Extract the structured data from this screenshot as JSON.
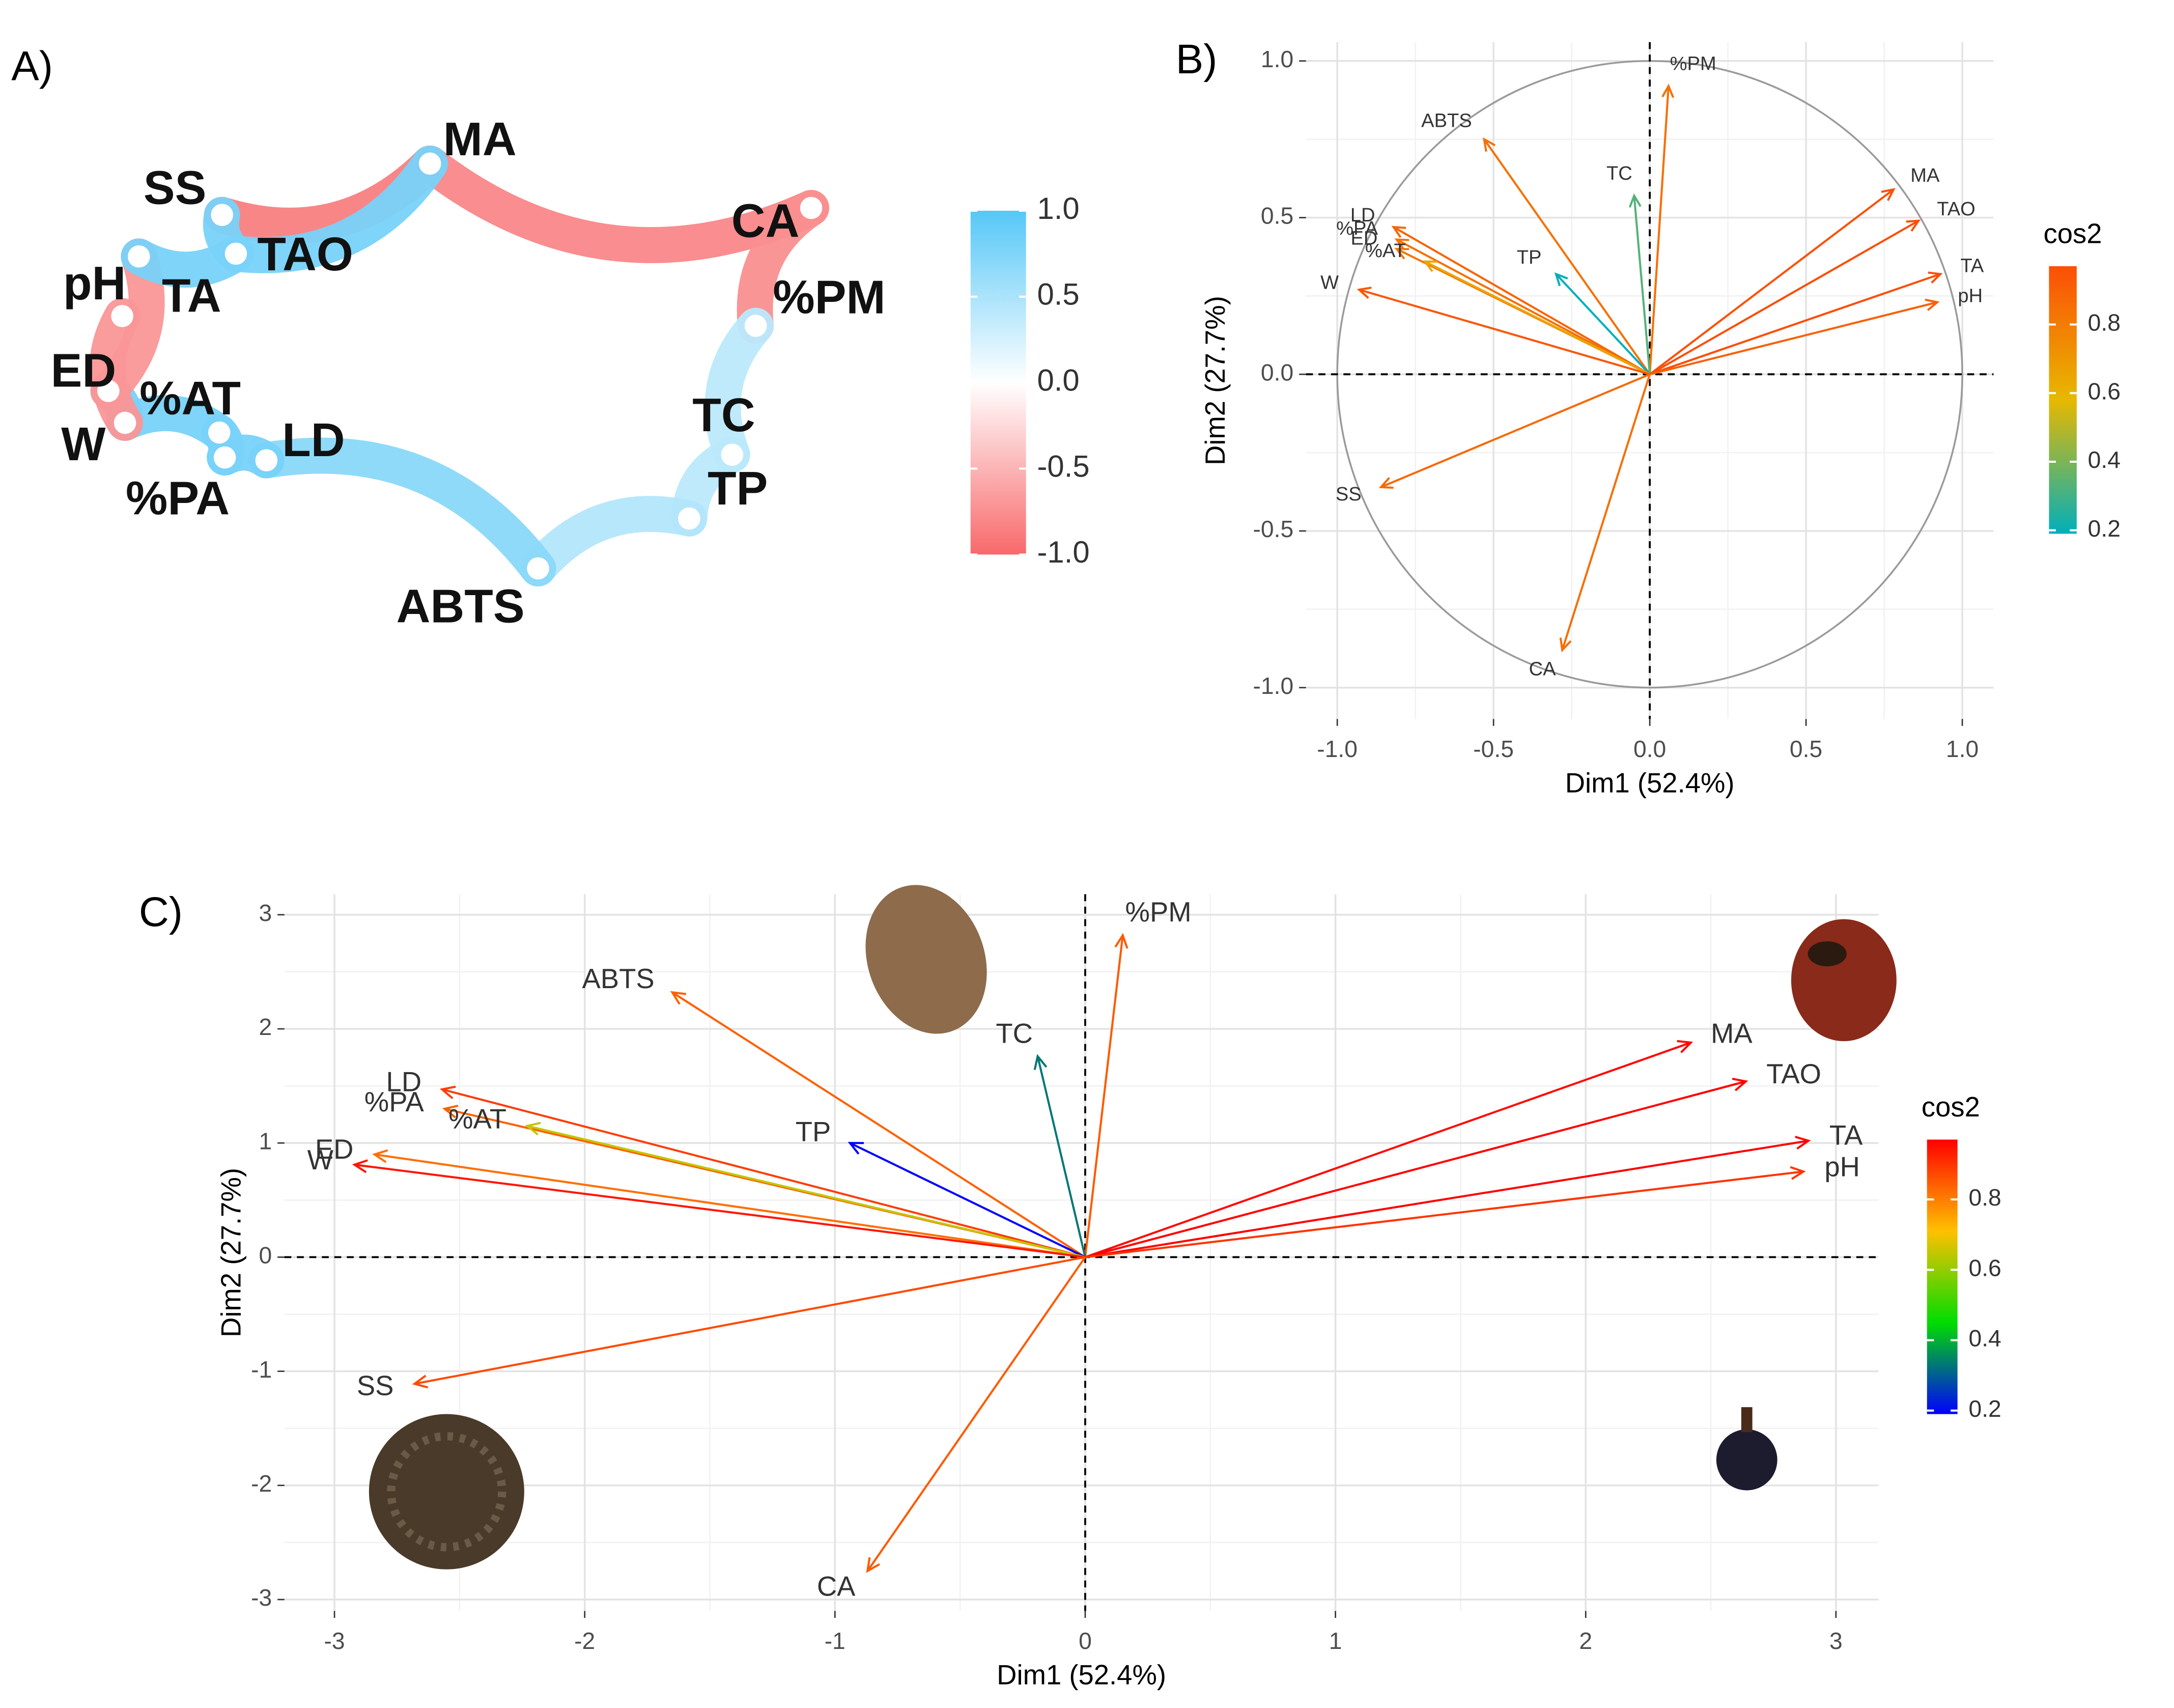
{
  "chart_data": [
    {
      "type": "network",
      "panel": "A)",
      "nodes": [
        "MA",
        "SS",
        "TAO",
        "pH",
        "TA",
        "CA",
        "%PM",
        "ED",
        "%AT",
        "W",
        "LD",
        "%PA",
        "TC",
        "TP",
        "ABTS"
      ],
      "edges": [
        {
          "from": "SS",
          "to": "MA",
          "value": -0.85
        },
        {
          "from": "MA",
          "to": "CA",
          "value": -0.8
        },
        {
          "from": "CA",
          "to": "%PM",
          "value": -0.75
        },
        {
          "from": "%PM",
          "to": "TC",
          "value": 0.4
        },
        {
          "from": "TC",
          "to": "TP",
          "value": 0.4
        },
        {
          "from": "TP",
          "to": "ABTS",
          "value": 0.45
        },
        {
          "from": "ABTS",
          "to": "LD",
          "value": 0.7
        },
        {
          "from": "LD",
          "to": "%PA",
          "value": 0.8
        },
        {
          "from": "%PA",
          "to": "%AT",
          "value": 0.8
        },
        {
          "from": "%AT",
          "to": "W",
          "value": 0.8
        },
        {
          "from": "W",
          "to": "ED",
          "value": 0.8
        },
        {
          "from": "ED",
          "to": "TA",
          "value": -0.7
        },
        {
          "from": "pH",
          "to": "W",
          "value": -0.7
        },
        {
          "from": "TA",
          "to": "TAO",
          "value": 0.8
        },
        {
          "from": "TAO",
          "to": "MA",
          "value": 0.8
        },
        {
          "from": "SS",
          "to": "TAO",
          "value": 0.8
        }
      ],
      "colorbar": {
        "lim": [
          -1,
          1
        ],
        "colors": [
          "#F8696B",
          "#FFFFFF",
          "#56C7F7"
        ],
        "ticks": [
          {
            "value": 1,
            "label": "1.0"
          },
          {
            "value": 0.5,
            "label": "0.5"
          },
          {
            "value": 0,
            "label": "0.0"
          },
          {
            "value": -0.5,
            "label": "-0.5"
          },
          {
            "value": -1,
            "label": "-1.0"
          }
        ]
      }
    },
    {
      "type": "biplot",
      "panel": "B)",
      "xlabel": "Dim1 (52.4%)",
      "ylabel": "Dim2 (27.7%)",
      "legend_title": "cos2",
      "xlim": [
        -1.1,
        1.1
      ],
      "ylim": [
        -1.1,
        1.06
      ],
      "grid": true,
      "circle": true,
      "xticks": [
        {
          "value": -1,
          "label": "-1.0"
        },
        {
          "value": -0.5,
          "label": "-0.5"
        },
        {
          "value": 0,
          "label": "0.0"
        },
        {
          "value": 0.5,
          "label": "0.5"
        },
        {
          "value": 1,
          "label": "1.0"
        }
      ],
      "yticks": [
        {
          "value": -1,
          "label": "-1.0"
        },
        {
          "value": -0.5,
          "label": "-0.5"
        },
        {
          "value": 0,
          "label": "0.0"
        },
        {
          "value": 0.5,
          "label": "0.5"
        },
        {
          "value": 1,
          "label": "1.0"
        }
      ],
      "colorbar": {
        "lim": [
          0.19,
          0.97
        ],
        "colors": [
          "#00AFBB",
          "#E7B800",
          "#FC4E07"
        ],
        "ticks": [
          0.2,
          0.4,
          0.6,
          0.8
        ]
      },
      "variables": [
        {
          "name": "%PM",
          "x": 0.06,
          "y": 0.92,
          "cos2": 0.85
        },
        {
          "name": "ABTS",
          "x": -0.53,
          "y": 0.75,
          "cos2": 0.84
        },
        {
          "name": "TC",
          "x": -0.05,
          "y": 0.57,
          "cos2": 0.33
        },
        {
          "name": "TP",
          "x": -0.3,
          "y": 0.32,
          "cos2": 0.19
        },
        {
          "name": "LD",
          "x": -0.82,
          "y": 0.47,
          "cos2": 0.89
        },
        {
          "name": "%PA",
          "x": -0.81,
          "y": 0.43,
          "cos2": 0.84
        },
        {
          "name": "ED",
          "x": -0.81,
          "y": 0.4,
          "cos2": 0.82
        },
        {
          "name": "%AT",
          "x": -0.72,
          "y": 0.36,
          "cos2": 0.65
        },
        {
          "name": "W",
          "x": -0.93,
          "y": 0.27,
          "cos2": 0.94
        },
        {
          "name": "SS",
          "x": -0.86,
          "y": -0.36,
          "cos2": 0.87
        },
        {
          "name": "CA",
          "x": -0.28,
          "y": -0.88,
          "cos2": 0.85
        },
        {
          "name": "MA",
          "x": 0.78,
          "y": 0.59,
          "cos2": 0.96
        },
        {
          "name": "TAO",
          "x": 0.86,
          "y": 0.49,
          "cos2": 0.97
        },
        {
          "name": "TA",
          "x": 0.93,
          "y": 0.32,
          "cos2": 0.97
        },
        {
          "name": "pH",
          "x": 0.92,
          "y": 0.23,
          "cos2": 0.9
        }
      ]
    },
    {
      "type": "biplot",
      "panel": "C)",
      "xlabel": "Dim1 (52.4%)",
      "ylabel": "Dim2 (27.7%)",
      "legend_title": "cos2",
      "xlim": [
        -3.2,
        3.17
      ],
      "ylim": [
        -3.1,
        3.18
      ],
      "grid": true,
      "circle": false,
      "xticks": [
        -3,
        -2,
        -1,
        0,
        1,
        2,
        3
      ],
      "yticks": [
        -3,
        -2,
        -1,
        0,
        1,
        2,
        3
      ],
      "colorbar": {
        "lim": [
          0.19,
          0.97
        ],
        "colors": [
          "#0000FF",
          "#00DD00",
          "#FFC000",
          "#FF0000"
        ],
        "ticks": [
          0.2,
          0.4,
          0.6,
          0.8
        ]
      },
      "variables": [
        {
          "name": "%PM",
          "x": 0.15,
          "y": 2.82,
          "cos2": 0.85
        },
        {
          "name": "ABTS",
          "x": -1.65,
          "y": 2.32,
          "cos2": 0.84
        },
        {
          "name": "TC",
          "x": -0.19,
          "y": 1.76,
          "cos2": 0.33
        },
        {
          "name": "TP",
          "x": -0.94,
          "y": 1.0,
          "cos2": 0.19
        },
        {
          "name": "LD",
          "x": -2.57,
          "y": 1.47,
          "cos2": 0.89
        },
        {
          "name": "%PA",
          "x": -2.56,
          "y": 1.3,
          "cos2": 0.84
        },
        {
          "name": "ED",
          "x": -2.84,
          "y": 0.9,
          "cos2": 0.82
        },
        {
          "name": "%AT",
          "x": -2.23,
          "y": 1.15,
          "cos2": 0.65
        },
        {
          "name": "W",
          "x": -2.92,
          "y": 0.81,
          "cos2": 0.94
        },
        {
          "name": "SS",
          "x": -2.68,
          "y": -1.11,
          "cos2": 0.87
        },
        {
          "name": "CA",
          "x": -0.87,
          "y": -2.75,
          "cos2": 0.85
        },
        {
          "name": "MA",
          "x": 2.42,
          "y": 1.88,
          "cos2": 0.96
        },
        {
          "name": "TAO",
          "x": 2.64,
          "y": 1.54,
          "cos2": 0.97
        },
        {
          "name": "TA",
          "x": 2.89,
          "y": 1.02,
          "cos2": 0.97
        },
        {
          "name": "pH",
          "x": 2.87,
          "y": 0.75,
          "cos2": 0.9
        }
      ]
    }
  ]
}
